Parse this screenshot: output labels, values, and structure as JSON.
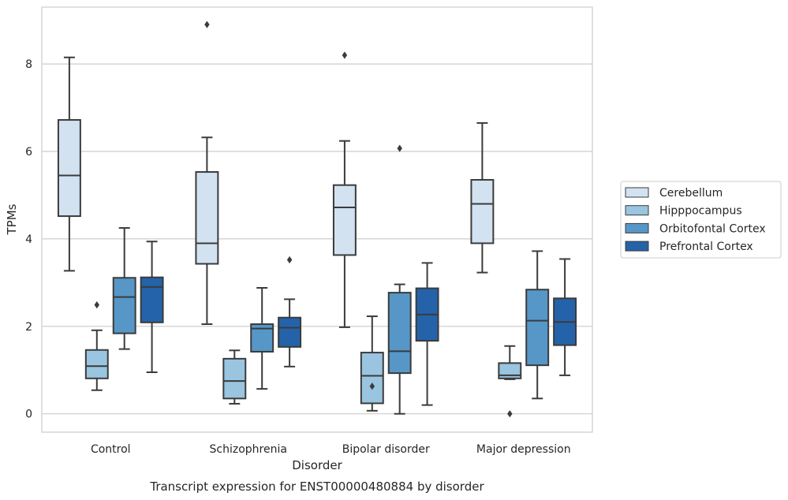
{
  "chart_data": {
    "type": "box",
    "caption": "Transcript expression for ENST00000480884 by disorder",
    "xlabel": "Disorder",
    "ylabel": "TPMs",
    "ylim": [
      -0.42,
      9.3
    ],
    "yticks": [
      0,
      2,
      4,
      6,
      8
    ],
    "grid": true,
    "legend_position": "right",
    "categories": [
      "Control",
      "Schizophrenia",
      "Bipolar disorder",
      "Major depression"
    ],
    "series": [
      {
        "name": "Cerebellum",
        "color": "#d2e2f1",
        "boxes": [
          {
            "whislo": 3.27,
            "q1": 4.52,
            "med": 5.45,
            "q3": 6.72,
            "whishi": 8.15,
            "fliers": []
          },
          {
            "whislo": 2.05,
            "q1": 3.43,
            "med": 3.9,
            "q3": 5.53,
            "whishi": 6.32,
            "fliers": [
              8.9
            ]
          },
          {
            "whislo": 1.98,
            "q1": 3.63,
            "med": 4.72,
            "q3": 5.23,
            "whishi": 6.24,
            "fliers": [
              8.2
            ]
          },
          {
            "whislo": 3.23,
            "q1": 3.9,
            "med": 4.8,
            "q3": 5.35,
            "whishi": 6.65,
            "fliers": []
          }
        ]
      },
      {
        "name": "Hipppocampus",
        "color": "#99c5e0",
        "boxes": [
          {
            "whislo": 0.54,
            "q1": 0.81,
            "med": 1.09,
            "q3": 1.46,
            "whishi": 1.91,
            "fliers": [
              2.49
            ]
          },
          {
            "whislo": 0.23,
            "q1": 0.35,
            "med": 0.75,
            "q3": 1.26,
            "whishi": 1.45,
            "fliers": []
          },
          {
            "whislo": 0.07,
            "q1": 0.24,
            "med": 0.87,
            "q3": 1.4,
            "whishi": 2.23,
            "fliers": [
              0.63
            ]
          },
          {
            "whislo": 0.79,
            "q1": 0.81,
            "med": 0.88,
            "q3": 1.16,
            "whishi": 1.55,
            "fliers": [
              0.0
            ]
          }
        ]
      },
      {
        "name": "Orbitofontal Cortex",
        "color": "#5697c7",
        "boxes": [
          {
            "whislo": 1.48,
            "q1": 1.84,
            "med": 2.67,
            "q3": 3.11,
            "whishi": 4.25,
            "fliers": []
          },
          {
            "whislo": 0.57,
            "q1": 1.42,
            "med": 1.95,
            "q3": 2.05,
            "whishi": 2.88,
            "fliers": []
          },
          {
            "whislo": 0.0,
            "q1": 0.93,
            "med": 1.43,
            "q3": 2.77,
            "whishi": 2.96,
            "fliers": [
              6.07
            ]
          },
          {
            "whislo": 0.35,
            "q1": 1.11,
            "med": 2.13,
            "q3": 2.84,
            "whishi": 3.72,
            "fliers": []
          }
        ]
      },
      {
        "name": "Prefrontal Cortex",
        "color": "#2463a9",
        "boxes": [
          {
            "whislo": 0.95,
            "q1": 2.09,
            "med": 2.9,
            "q3": 3.12,
            "whishi": 3.94,
            "fliers": []
          },
          {
            "whislo": 1.08,
            "q1": 1.53,
            "med": 1.97,
            "q3": 2.2,
            "whishi": 2.62,
            "fliers": [
              3.52
            ]
          },
          {
            "whislo": 0.2,
            "q1": 1.67,
            "med": 2.27,
            "q3": 2.87,
            "whishi": 3.45,
            "fliers": []
          },
          {
            "whislo": 0.88,
            "q1": 1.57,
            "med": 2.1,
            "q3": 2.64,
            "whishi": 3.54,
            "fliers": []
          }
        ]
      }
    ]
  }
}
